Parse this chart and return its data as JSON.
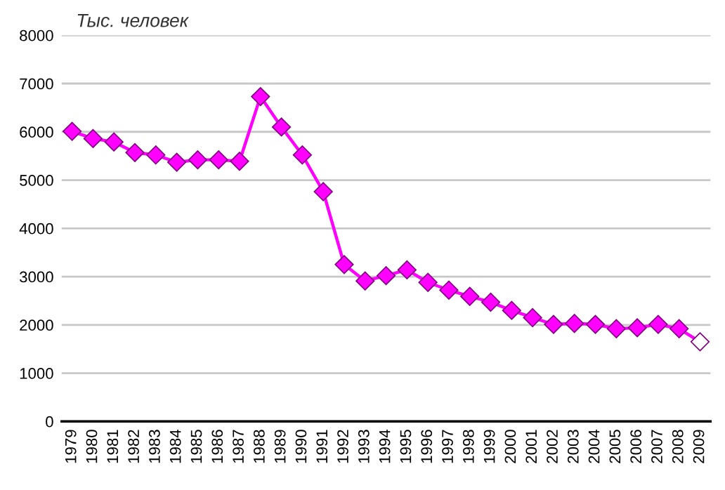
{
  "chart_data": {
    "type": "line",
    "ylabel": "Тыс. человек",
    "categories": [
      "1979",
      "1980",
      "1981",
      "1982",
      "1983",
      "1984",
      "1985",
      "1986",
      "1987",
      "1988",
      "1989",
      "1990",
      "1991",
      "1992",
      "1993",
      "1994",
      "1995",
      "1996",
      "1997",
      "1998",
      "1999",
      "2000",
      "2001",
      "2002",
      "2003",
      "2004",
      "2005",
      "2006",
      "2007",
      "2008",
      "2009"
    ],
    "series": [
      {
        "color": "#ff00ff",
        "values": [
          6010,
          5860,
          5790,
          5570,
          5520,
          5370,
          5420,
          5420,
          5390,
          6730,
          6100,
          5520,
          4760,
          3250,
          2910,
          3020,
          3140,
          2880,
          2720,
          2590,
          2470,
          2300,
          2150,
          2010,
          2030,
          2010,
          1920,
          1940,
          2010,
          1920,
          1650
        ],
        "colors": [
          "#ff00ff",
          "#ff00ff",
          "#ff00ff",
          "#ff00ff",
          "#ff00ff",
          "#ff00ff",
          "#ff00ff",
          "#ff00ff",
          "#ff00ff",
          "#ff00ff",
          "#ff00ff",
          "#ff00ff",
          "#ff00ff",
          "#ff00ff",
          "#ff00ff",
          "#ff00ff",
          "#ff00ff",
          "#ff00ff",
          "#ff00ff",
          "#ff00ff",
          "#ff00ff",
          "#ff00ff",
          "#ff00ff",
          "#ff00ff",
          "#ff00ff",
          "#ff00ff",
          "#ff00ff",
          "#ff00ff",
          "#ff00ff",
          "#ff00ff",
          "#ffffff"
        ]
      }
    ],
    "ylim": [
      0,
      8000
    ],
    "yticks": [
      0,
      1000,
      2000,
      3000,
      4000,
      5000,
      6000,
      7000,
      8000
    ],
    "grid": "y",
    "marker": "diamond",
    "line_style": "solid"
  }
}
